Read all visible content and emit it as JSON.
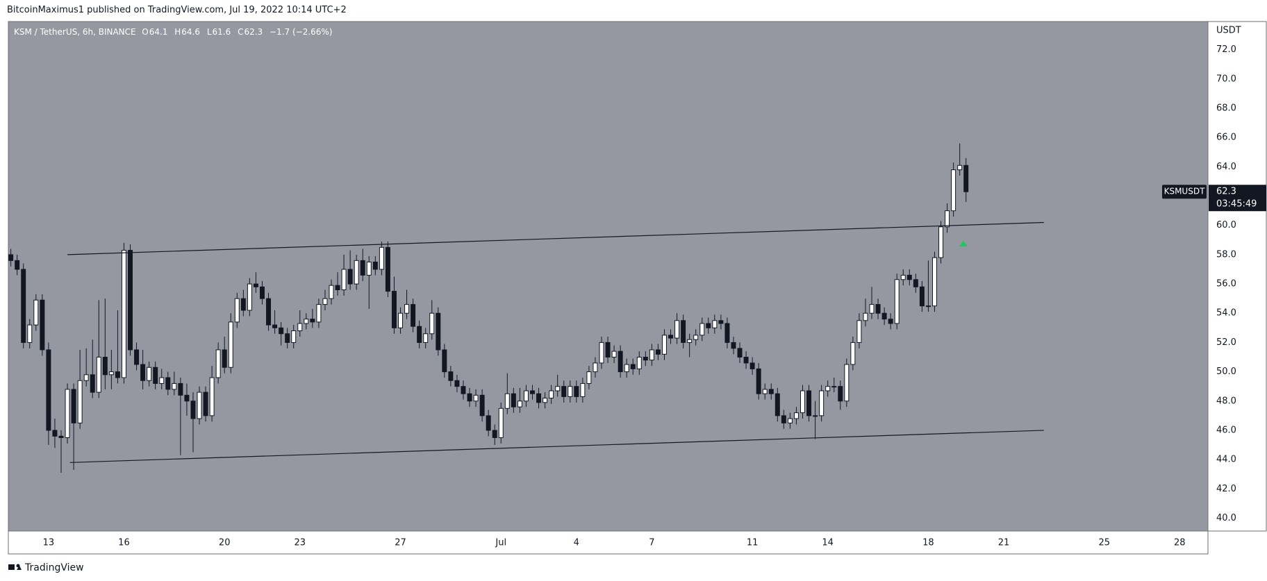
{
  "header": {
    "publisher": "BitcoinMaximus1 published on TradingView.com, Jul 19, 2022 10:14 UTC+2",
    "footer": "TradingView"
  },
  "chart_data": {
    "type": "candlestick",
    "title": "KSM / TetherUS, 6h, BINANCE",
    "symbol": "KSMUSDT",
    "y_unit": "USDT",
    "ohlc_labels": [
      "O",
      "H",
      "L",
      "C"
    ],
    "change_label": "−1.7 (−2.66%)",
    "countdown": "03:45:49",
    "background": "#9598a1",
    "up_color": "#ffffff",
    "down_color": "#131722",
    "trendline_color": "#131722",
    "open": [
      58.0,
      57.6,
      57.0,
      52.0,
      53.2,
      54.9,
      51.5,
      46.0,
      45.6,
      45.5,
      48.8,
      46.5,
      49.4,
      49.8,
      48.6,
      51.0,
      49.8,
      50.0,
      49.6,
      58.3,
      51.5,
      50.5,
      49.4,
      50.3,
      49.2,
      49.6,
      48.8,
      49.2,
      48.4,
      48.0,
      46.8,
      48.6,
      47.0,
      49.6,
      51.5,
      50.3,
      53.4,
      55.0,
      54.2,
      56.0,
      55.8,
      55.0,
      53.2,
      53.0,
      52.6,
      52.0,
      52.8,
      53.3,
      53.6,
      53.4,
      54.6,
      55.0,
      55.9,
      55.6,
      57.0,
      56.0,
      57.6,
      56.6,
      57.5,
      57.0,
      58.5,
      55.5,
      53.0,
      54.0,
      54.6,
      53.1,
      52.0,
      52.6,
      54.0,
      51.5,
      50.0,
      49.4,
      49.0,
      48.5,
      48.0,
      48.4,
      47.0,
      46.0,
      45.5,
      47.5,
      48.5,
      47.6,
      48.0,
      48.7,
      48.5,
      47.9,
      48.2,
      48.7,
      49.0,
      48.3,
      49.0,
      48.3,
      49.2,
      50.0,
      50.6,
      52.0,
      51.0,
      51.4,
      50.0,
      50.5,
      50.2,
      51.0,
      50.8,
      51.5,
      51.2,
      52.5,
      52.3,
      53.5,
      52.0,
      52.2,
      52.5,
      53.3,
      53.0,
      53.5,
      53.3,
      52.0,
      51.6,
      51.0,
      50.6,
      50.2,
      48.5,
      48.8,
      48.5,
      47.0,
      46.5,
      46.8,
      47.2,
      48.7,
      47.0,
      47.0,
      48.7,
      49.0,
      49.0,
      48.0,
      50.5,
      52.0,
      53.5,
      54.0,
      54.6,
      54.0,
      53.6,
      53.3,
      56.3,
      56.6,
      56.3,
      55.8,
      54.5,
      54.5,
      57.8,
      59.9,
      61.0,
      63.8,
      64.1
    ],
    "high": [
      58.4,
      58.0,
      57.4,
      53.6,
      55.3,
      55.3,
      52.0,
      46.8,
      46.0,
      49.2,
      49.2,
      51.5,
      51.6,
      52.2,
      54.9,
      55.0,
      51.5,
      54.2,
      58.8,
      58.7,
      52.0,
      51.5,
      50.7,
      50.7,
      50.2,
      50.0,
      50.0,
      49.6,
      49.2,
      48.6,
      49.0,
      49.0,
      50.4,
      52.0,
      52.4,
      54.0,
      55.4,
      55.6,
      56.4,
      56.8,
      56.2,
      55.4,
      54.2,
      53.4,
      53.0,
      53.2,
      54.2,
      54.0,
      54.3,
      55.0,
      55.6,
      56.3,
      56.8,
      58.0,
      58.3,
      58.0,
      58.4,
      57.9,
      57.9,
      58.9,
      58.9,
      56.5,
      54.4,
      55.6,
      55.0,
      53.5,
      53.0,
      54.9,
      54.4,
      51.9,
      50.4,
      49.8,
      49.4,
      48.9,
      48.8,
      48.8,
      47.4,
      46.4,
      47.9,
      49.9,
      48.9,
      48.9,
      49.1,
      49.1,
      48.9,
      48.6,
      49.1,
      49.8,
      49.4,
      49.4,
      49.4,
      49.6,
      50.4,
      51.0,
      52.4,
      52.4,
      51.8,
      51.8,
      50.9,
      50.9,
      51.4,
      51.4,
      51.9,
      51.9,
      52.9,
      52.9,
      54.0,
      53.9,
      52.6,
      52.9,
      53.7,
      53.7,
      53.9,
      53.9,
      53.7,
      52.4,
      52.0,
      51.4,
      51.0,
      50.6,
      49.2,
      49.2,
      48.9,
      47.4,
      47.2,
      47.6,
      49.1,
      49.1,
      48.0,
      49.1,
      49.4,
      49.6,
      49.4,
      50.9,
      52.4,
      54.0,
      55.0,
      55.8,
      55.0,
      54.4,
      54.0,
      56.7,
      57.0,
      57.0,
      56.7,
      56.2,
      57.6,
      58.2,
      60.3,
      61.5,
      64.3,
      65.6,
      64.6
    ],
    "low": [
      57.2,
      56.6,
      51.6,
      51.6,
      52.8,
      51.1,
      45.0,
      44.8,
      43.1,
      45.1,
      43.3,
      46.1,
      49.0,
      48.2,
      48.2,
      48.8,
      48.8,
      49.2,
      49.2,
      51.1,
      50.1,
      48.8,
      49.0,
      48.8,
      48.8,
      48.4,
      48.4,
      44.3,
      47.0,
      44.5,
      46.4,
      46.6,
      46.6,
      49.2,
      49.9,
      49.9,
      53.0,
      53.8,
      53.8,
      55.4,
      54.6,
      52.8,
      52.6,
      51.8,
      51.6,
      51.6,
      52.4,
      52.9,
      53.0,
      53.0,
      54.2,
      54.6,
      55.2,
      55.2,
      55.6,
      55.6,
      56.2,
      54.3,
      56.6,
      56.6,
      55.1,
      52.6,
      52.6,
      53.6,
      52.7,
      51.6,
      51.6,
      52.2,
      51.1,
      49.6,
      49.0,
      48.6,
      48.1,
      47.6,
      47.6,
      46.6,
      45.6,
      45.0,
      45.1,
      47.1,
      47.2,
      47.2,
      47.6,
      48.1,
      47.5,
      47.5,
      47.8,
      48.3,
      47.9,
      47.9,
      47.9,
      47.9,
      48.8,
      49.6,
      50.2,
      50.6,
      50.6,
      49.6,
      49.6,
      49.8,
      49.8,
      50.4,
      50.4,
      50.8,
      50.8,
      51.9,
      51.9,
      51.6,
      51.0,
      51.8,
      52.1,
      52.6,
      52.6,
      52.9,
      51.6,
      51.2,
      50.6,
      50.2,
      49.8,
      48.1,
      48.1,
      48.1,
      46.6,
      46.1,
      46.1,
      46.4,
      46.8,
      46.6,
      45.4,
      46.6,
      48.3,
      48.6,
      47.4,
      47.6,
      50.1,
      51.6,
      53.1,
      53.6,
      53.6,
      53.2,
      52.9,
      52.9,
      55.9,
      55.9,
      55.4,
      54.1,
      54.1,
      54.1,
      57.4,
      59.5,
      60.6,
      63.4,
      61.6
    ],
    "close": [
      57.6,
      57.0,
      52.0,
      53.2,
      54.9,
      51.5,
      46.0,
      45.6,
      45.5,
      48.8,
      46.5,
      49.4,
      49.8,
      48.6,
      51.0,
      49.8,
      50.0,
      49.6,
      58.3,
      51.5,
      50.5,
      49.4,
      50.3,
      49.2,
      49.6,
      48.8,
      49.2,
      48.4,
      48.0,
      46.8,
      48.6,
      47.0,
      49.6,
      51.5,
      50.3,
      53.4,
      55.0,
      54.2,
      56.0,
      55.8,
      55.0,
      53.2,
      53.0,
      52.6,
      52.0,
      52.8,
      53.3,
      53.6,
      53.4,
      54.6,
      55.0,
      55.9,
      55.6,
      57.0,
      56.0,
      57.6,
      56.6,
      57.5,
      57.0,
      58.5,
      55.5,
      53.0,
      54.0,
      54.6,
      53.1,
      52.0,
      52.6,
      54.0,
      51.5,
      50.0,
      49.4,
      49.0,
      48.5,
      48.0,
      48.4,
      47.0,
      46.0,
      45.5,
      47.5,
      48.5,
      47.6,
      48.0,
      48.7,
      48.5,
      47.9,
      48.2,
      48.7,
      49.0,
      48.3,
      49.0,
      48.3,
      49.2,
      50.0,
      50.6,
      52.0,
      51.0,
      51.4,
      50.0,
      50.5,
      50.2,
      51.0,
      50.8,
      51.5,
      51.2,
      52.5,
      52.3,
      53.5,
      52.0,
      52.2,
      52.5,
      53.3,
      53.0,
      53.5,
      53.3,
      52.0,
      51.6,
      51.0,
      50.6,
      50.2,
      48.5,
      48.8,
      48.5,
      47.0,
      46.5,
      46.8,
      47.2,
      48.7,
      47.0,
      47.0,
      48.7,
      49.0,
      49.0,
      48.0,
      50.5,
      52.0,
      53.5,
      54.0,
      54.6,
      54.0,
      53.6,
      53.3,
      56.3,
      56.6,
      56.3,
      55.8,
      54.5,
      54.5,
      57.8,
      59.9,
      61.0,
      63.8,
      64.1,
      62.3
    ],
    "trendlines": [
      {
        "x": [
          9,
          164.4
        ],
        "y": [
          58.0,
          60.2
        ]
      },
      {
        "x": [
          9.4,
          164.4
        ],
        "y": [
          43.8,
          46.0
        ]
      }
    ],
    "xlim": [
      -0.4,
      190.5
    ],
    "xticks": [
      {
        "value": 6,
        "label": "13"
      },
      {
        "value": 18,
        "label": "16"
      },
      {
        "value": 34,
        "label": "20"
      },
      {
        "value": 46,
        "label": "23"
      },
      {
        "value": 62,
        "label": "27"
      },
      {
        "value": 78,
        "label": "Jul"
      },
      {
        "value": 90,
        "label": "4"
      },
      {
        "value": 102,
        "label": "7"
      },
      {
        "value": 118,
        "label": "11"
      },
      {
        "value": 130,
        "label": "14"
      },
      {
        "value": 146,
        "label": "18"
      },
      {
        "value": 158,
        "label": "21"
      },
      {
        "value": 174,
        "label": "25"
      },
      {
        "value": 186,
        "label": "28"
      }
    ],
    "ylim": [
      39.12,
      73.93
    ],
    "yticks": [
      {
        "value": 40,
        "label": "40.0"
      },
      {
        "value": 42,
        "label": "42.0"
      },
      {
        "value": 44,
        "label": "44.0"
      },
      {
        "value": 46,
        "label": "46.0"
      },
      {
        "value": 48,
        "label": "48.0"
      },
      {
        "value": 50,
        "label": "50.0"
      },
      {
        "value": 52,
        "label": "52.0"
      },
      {
        "value": 54,
        "label": "54.0"
      },
      {
        "value": 56,
        "label": "56.0"
      },
      {
        "value": 58,
        "label": "58.0"
      },
      {
        "value": 60,
        "label": "60.0"
      },
      {
        "value": 62,
        "label": "62.0"
      },
      {
        "value": 64,
        "label": "64.0"
      },
      {
        "value": 66,
        "label": "66.0"
      },
      {
        "value": 68,
        "label": "68.0"
      },
      {
        "value": 70,
        "label": "70.0"
      },
      {
        "value": 72,
        "label": "72.0"
      }
    ]
  }
}
